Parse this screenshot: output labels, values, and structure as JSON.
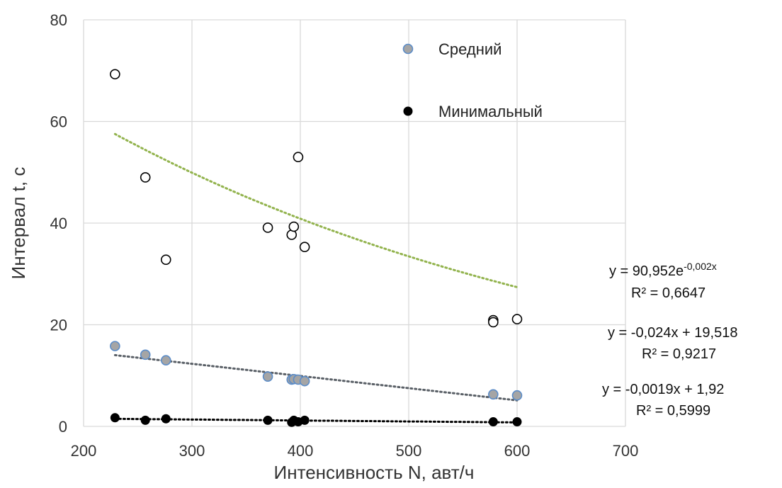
{
  "chart_data": {
    "type": "scatter",
    "xlabel": "Интенсивность N, авт/ч",
    "ylabel": "Интервал t, с",
    "xlim": [
      200,
      700
    ],
    "ylim": [
      0,
      80
    ],
    "xticks": [
      "200",
      "300",
      "400",
      "500",
      "600",
      "700"
    ],
    "yticks": [
      "0",
      "20",
      "40",
      "60",
      "80"
    ],
    "grid": true,
    "legend_position": "top-right",
    "series": [
      {
        "name": "",
        "marker": "hollow-circle",
        "color": "#000000",
        "x": [
          229,
          257,
          276,
          370,
          392,
          394,
          398,
          404,
          578,
          578,
          600
        ],
        "y": [
          69.3,
          49.0,
          32.8,
          39.1,
          37.7,
          39.3,
          53.0,
          35.3,
          20.9,
          20.5,
          21.1
        ]
      },
      {
        "name": "Средний",
        "marker": "filled-circle",
        "color": "#a5a5a5",
        "edge": "#5b8cc8",
        "x": [
          229,
          257,
          276,
          370,
          392,
          394,
          398,
          404,
          578,
          600
        ],
        "y": [
          15.8,
          14.1,
          13.0,
          9.8,
          9.2,
          9.3,
          9.2,
          8.9,
          6.3,
          6.1
        ]
      },
      {
        "name": "Минимальный",
        "marker": "filled-circle",
        "color": "#000000",
        "x": [
          229,
          257,
          276,
          370,
          392,
          394,
          398,
          404,
          578,
          600
        ],
        "y": [
          1.7,
          1.2,
          1.5,
          1.2,
          0.8,
          1.2,
          0.9,
          1.2,
          0.9,
          0.9
        ]
      }
    ],
    "trendlines": [
      {
        "type": "exponential",
        "a": 90.952,
        "b": -0.002,
        "x_range": [
          229,
          600
        ],
        "color": "#92b34d",
        "eq_base": "y = 90,952e",
        "eq_exp": "-0,002x",
        "r2": "R² = 0,6647"
      },
      {
        "type": "linear",
        "slope": -0.024,
        "intercept": 19.518,
        "x_range": [
          229,
          600
        ],
        "color": "#595f66",
        "eq": "y = -0,024x + 19,518",
        "r2": "R² = 0,9217"
      },
      {
        "type": "linear",
        "slope": -0.0019,
        "intercept": 1.92,
        "x_range": [
          229,
          600
        ],
        "color": "#000000",
        "eq": "y = -0,0019x + 1,92",
        "r2": "R² = 0,5999"
      }
    ]
  }
}
